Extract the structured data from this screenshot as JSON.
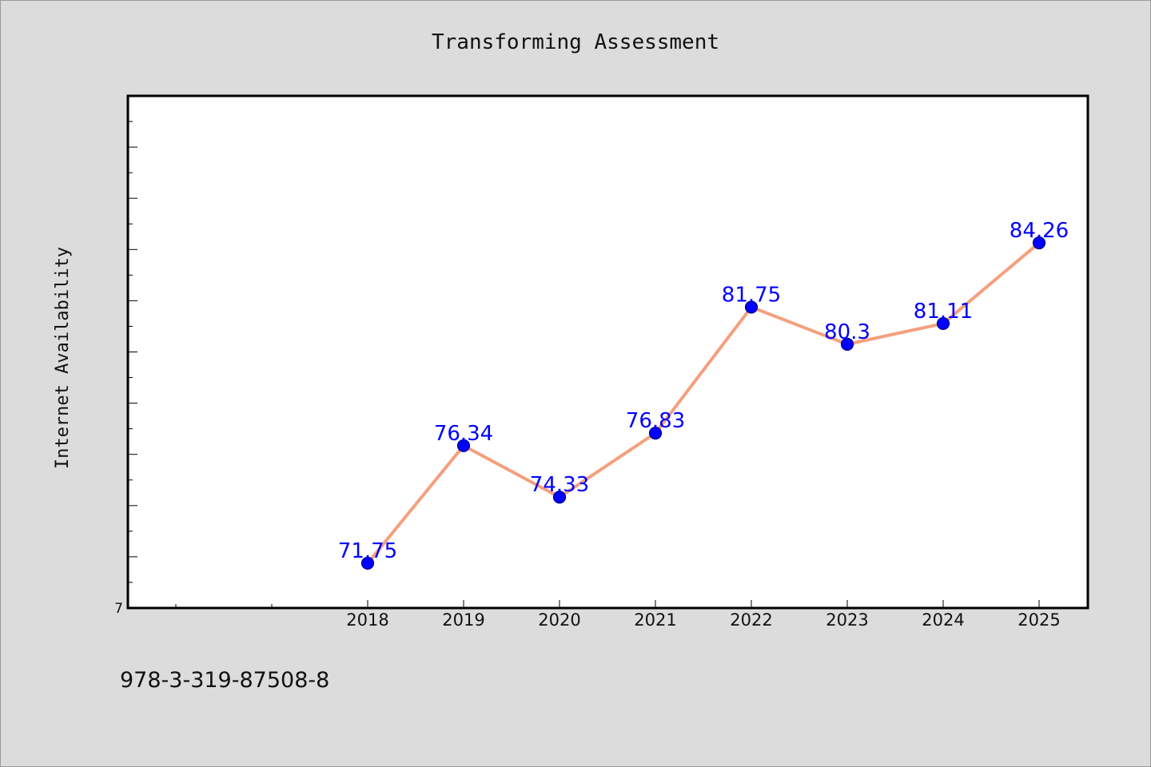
{
  "footer": {
    "identifier": "978-3-319-87508-8"
  },
  "chart_data": {
    "type": "line",
    "title": "Transforming Assessment",
    "xlabel": "",
    "ylabel": "Internet Availability",
    "categories": [
      "2018",
      "2019",
      "2020",
      "2021",
      "2022",
      "2023",
      "2024",
      "2025"
    ],
    "x_extra_minor_ticks": [
      "2016",
      "2017"
    ],
    "values": [
      71.75,
      76.34,
      74.33,
      76.83,
      81.75,
      80.3,
      81.11,
      84.26
    ],
    "data_labels": [
      "71.75",
      "76.34",
      "74.33",
      "76.83",
      "81.75",
      "80.3",
      "81.11",
      "84.26"
    ],
    "y_tick_labels": [
      "7"
    ],
    "ylim": [
      70,
      90
    ],
    "grid": false,
    "legend": "none",
    "colors": {
      "line": "#f4a07e",
      "marker_fill": "#0000ff",
      "marker_edge": "#000080",
      "data_label": "#0000ff",
      "plot_background": "#ffffff",
      "figure_background": "#dcdcdc"
    }
  }
}
